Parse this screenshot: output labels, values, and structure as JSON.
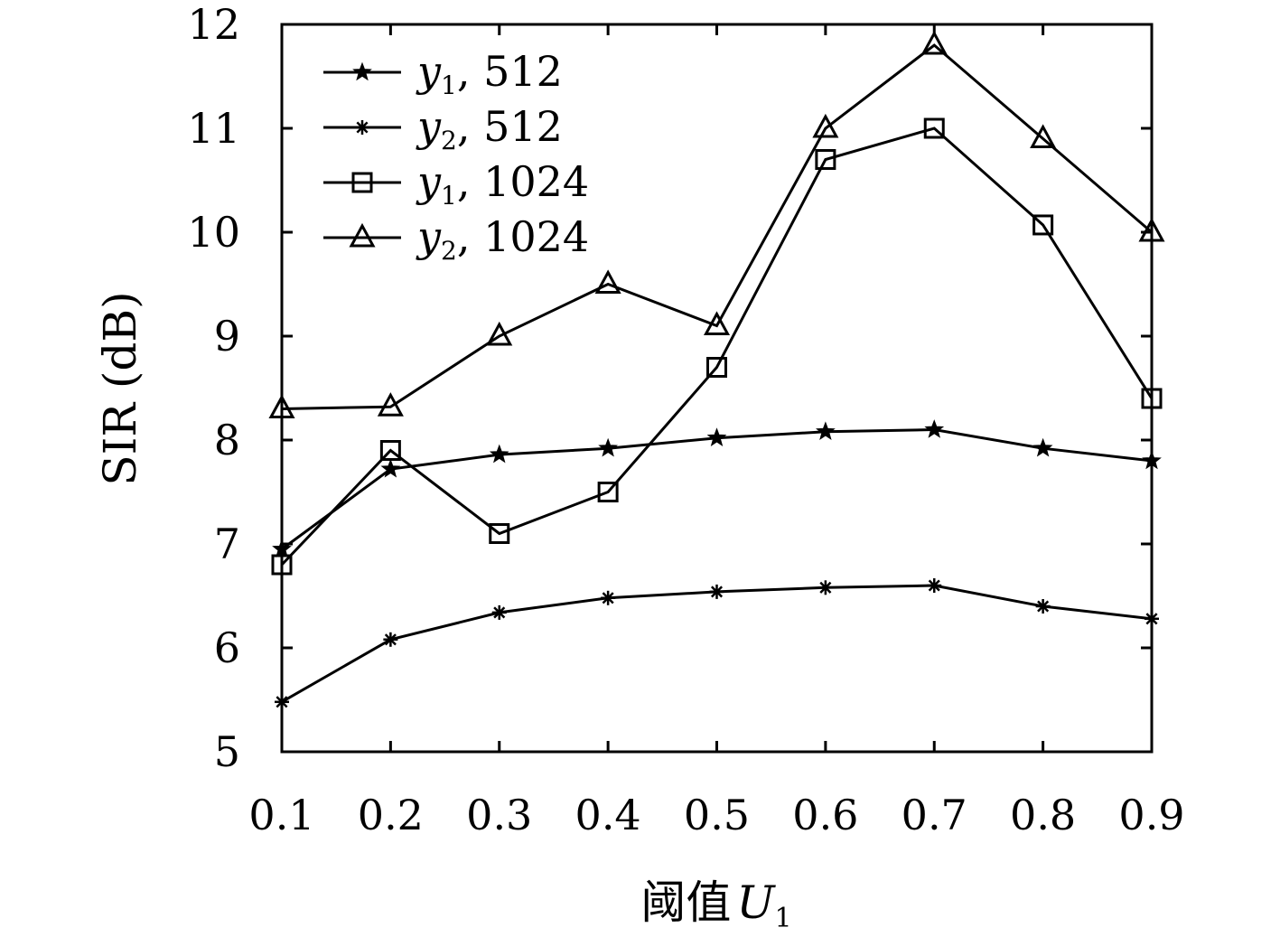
{
  "chart_data": {
    "type": "line",
    "x": [
      0.1,
      0.2,
      0.3,
      0.4,
      0.5,
      0.6,
      0.7,
      0.8,
      0.9
    ],
    "xticks": [
      "0.1",
      "0.2",
      "0.3",
      "0.4",
      "0.5",
      "0.6",
      "0.7",
      "0.8",
      "0.9"
    ],
    "yticks": [
      "5",
      "6",
      "7",
      "8",
      "9",
      "10",
      "11",
      "12"
    ],
    "xlim": [
      0.1,
      0.9
    ],
    "ylim": [
      5,
      12
    ],
    "xlabel": "阈值",
    "xlabel_var": "U",
    "xlabel_sub": "1",
    "ylabel": "SIR (dB)",
    "legend_position": "top-left",
    "grid": false,
    "series": [
      {
        "var": "y",
        "sub": "1",
        "tail": ", 512",
        "marker": "star",
        "values": [
          6.95,
          7.72,
          7.86,
          7.92,
          8.02,
          8.08,
          8.1,
          7.92,
          7.8
        ]
      },
      {
        "var": "y",
        "sub": "2",
        "tail": ", 512",
        "marker": "asterisk",
        "values": [
          5.48,
          6.08,
          6.34,
          6.48,
          6.54,
          6.58,
          6.6,
          6.4,
          6.28
        ]
      },
      {
        "var": "y",
        "sub": "1",
        "tail": ", 1024",
        "marker": "square",
        "values": [
          6.8,
          7.9,
          7.1,
          7.5,
          8.7,
          10.7,
          11.0,
          10.07,
          8.4
        ]
      },
      {
        "var": "y",
        "sub": "2",
        "tail": ", 1024",
        "marker": "triangle",
        "values": [
          8.3,
          8.32,
          9.0,
          9.5,
          9.1,
          11.0,
          11.8,
          10.9,
          10.0
        ]
      }
    ]
  }
}
